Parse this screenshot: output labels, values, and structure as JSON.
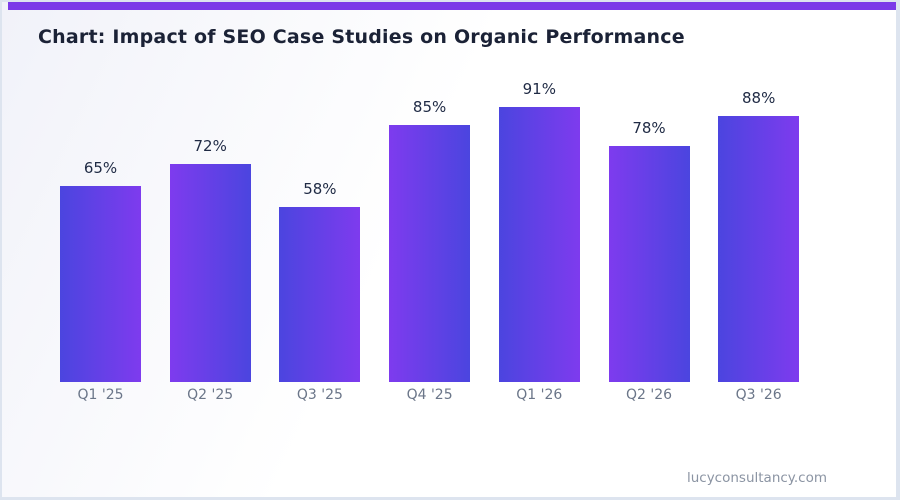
{
  "header": {
    "title": "Chart: Impact of SEO Case Studies on Organic Performance"
  },
  "footer": {
    "watermark": "lucyconsultancy.com"
  },
  "colors": {
    "accent": "#7b3ae8",
    "bar_purple": "#7e3bee",
    "bar_blue": "#4b45df",
    "title_text": "#1b2236",
    "value_text": "#1f2a44",
    "axis_text": "#6b7689",
    "watermark_text": "#8b94a3",
    "border": "#dde4ef"
  },
  "chart_data": {
    "type": "bar",
    "title": "Chart: Impact of SEO Case Studies on Organic Performance",
    "categories": [
      "Q1 '25",
      "Q2 '25",
      "Q3 '25",
      "Q4 '25",
      "Q1 '26",
      "Q2 '26",
      "Q3 '26"
    ],
    "values": [
      65,
      72,
      58,
      85,
      91,
      78,
      88
    ],
    "value_labels": [
      "65%",
      "72%",
      "58%",
      "85%",
      "91%",
      "78%",
      "88%"
    ],
    "unit": "%",
    "xlabel": "",
    "ylabel": "",
    "ylim": [
      0,
      91
    ],
    "grid": false,
    "legend": false,
    "bar_gradient": [
      "#4b45df",
      "#7e3bee"
    ],
    "annotations": []
  }
}
